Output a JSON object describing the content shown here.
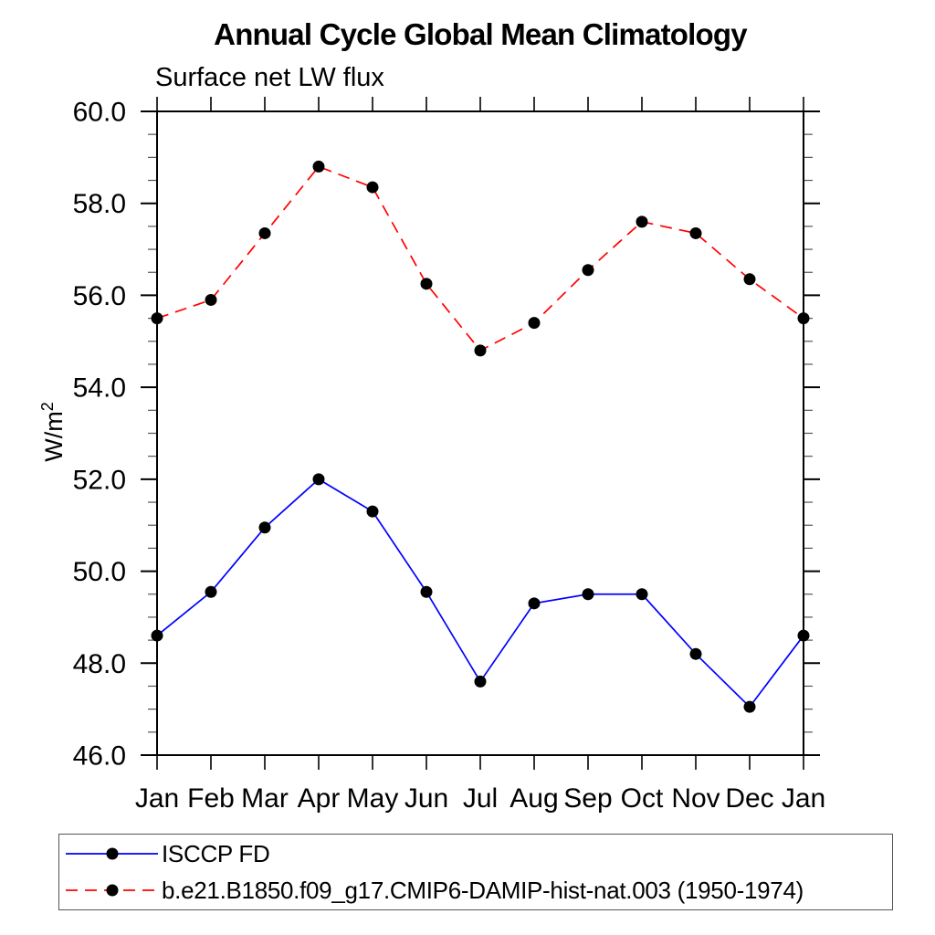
{
  "page": {
    "background": "#ffffff"
  },
  "chart_data": {
    "type": "line",
    "title": "Annual Cycle Global Mean Climatology",
    "subtitle": "Surface net LW flux",
    "ylabel": {
      "main": "W/m",
      "sup": "2"
    },
    "categories": [
      "Jan",
      "Feb",
      "Mar",
      "Apr",
      "May",
      "Jun",
      "Jul",
      "Aug",
      "Sep",
      "Oct",
      "Nov",
      "Dec",
      "Jan"
    ],
    "ylim": [
      46.0,
      60.0
    ],
    "ytick_step": 2.0,
    "yminor_step": 0.5,
    "ytick_labels": [
      "46.0",
      "48.0",
      "50.0",
      "52.0",
      "54.0",
      "56.0",
      "58.0",
      "60.0"
    ],
    "grid": false,
    "legend_position": "bottom-left-box",
    "axis_color": "#000000",
    "series": [
      {
        "name": "ISCCP FD",
        "color": "#0000ff",
        "line_style": "solid",
        "marker": "dot",
        "marker_color": "#000000",
        "values": [
          48.6,
          49.55,
          50.95,
          52.0,
          51.3,
          49.55,
          47.6,
          49.3,
          49.5,
          49.5,
          48.2,
          47.05,
          48.6
        ]
      },
      {
        "name": "b.e21.B1850.f09_g17.CMIP6-DAMIP-hist-nat.003 (1950-1974)",
        "color": "#ff0000",
        "line_style": "dashed",
        "marker": "dot",
        "marker_color": "#000000",
        "values": [
          55.5,
          55.9,
          57.35,
          58.8,
          58.35,
          56.25,
          54.8,
          55.4,
          56.55,
          57.6,
          57.35,
          56.35,
          55.5
        ]
      }
    ]
  }
}
